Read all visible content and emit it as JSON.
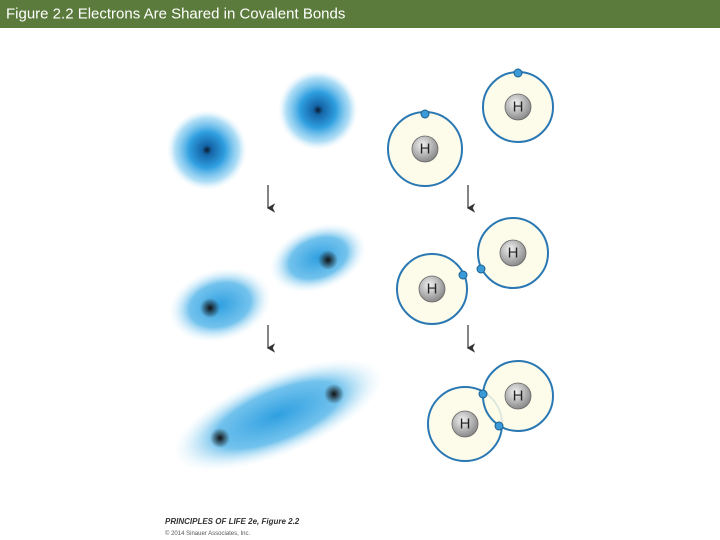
{
  "header": {
    "title": "Figure 2.2  Electrons Are Shared in Covalent Bonds"
  },
  "diagram": {
    "atoms": [
      {
        "label": "H"
      },
      {
        "label": "H"
      },
      {
        "label": "H"
      },
      {
        "label": "H"
      },
      {
        "label": "H"
      },
      {
        "label": "H"
      }
    ]
  },
  "credit": {
    "book": "PRINCIPLES OF LIFE 2e, Figure 2.2",
    "copyright": "© 2014 Sinauer Associates, Inc."
  }
}
